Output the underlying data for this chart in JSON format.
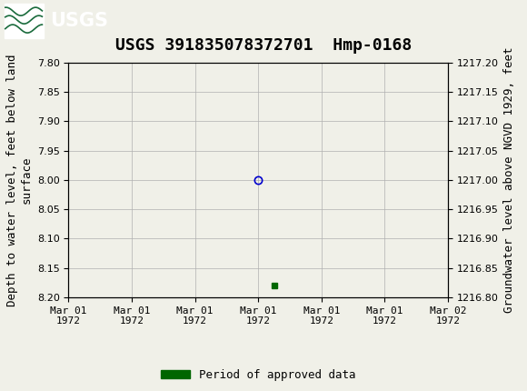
{
  "title": "USGS 391835078372701  Hmp-0168",
  "ylabel_left": "Depth to water level, feet below land\nsurface",
  "ylabel_right": "Groundwater level above NGVD 1929, feet",
  "ylim_left": [
    7.8,
    8.2
  ],
  "ylim_right": [
    1216.8,
    1217.2
  ],
  "y_ticks_left": [
    7.8,
    7.85,
    7.9,
    7.95,
    8.0,
    8.05,
    8.1,
    8.15,
    8.2
  ],
  "y_ticks_right": [
    1216.8,
    1216.85,
    1216.9,
    1216.95,
    1217.0,
    1217.05,
    1217.1,
    1217.15,
    1217.2
  ],
  "data_points": [
    {
      "x": 12.0,
      "depth": 8.0,
      "marker": "o",
      "color": "#0000cc",
      "filled": false
    },
    {
      "x": 13.0,
      "depth": 8.18,
      "marker": "s",
      "color": "#006600",
      "filled": true
    }
  ],
  "x_tick_labels": [
    "Mar 01\n1972",
    "Mar 01\n1972",
    "Mar 01\n1972",
    "Mar 01\n1972",
    "Mar 01\n1972",
    "Mar 01\n1972",
    "Mar 02\n1972"
  ],
  "legend_label": "Period of approved data",
  "legend_color": "#006600",
  "background_color": "#f0f0e8",
  "header_color": "#1a6b3c",
  "grid_color": "#b0b0b0",
  "font_family": "monospace",
  "title_fontsize": 13,
  "axis_label_fontsize": 9,
  "tick_fontsize": 8
}
